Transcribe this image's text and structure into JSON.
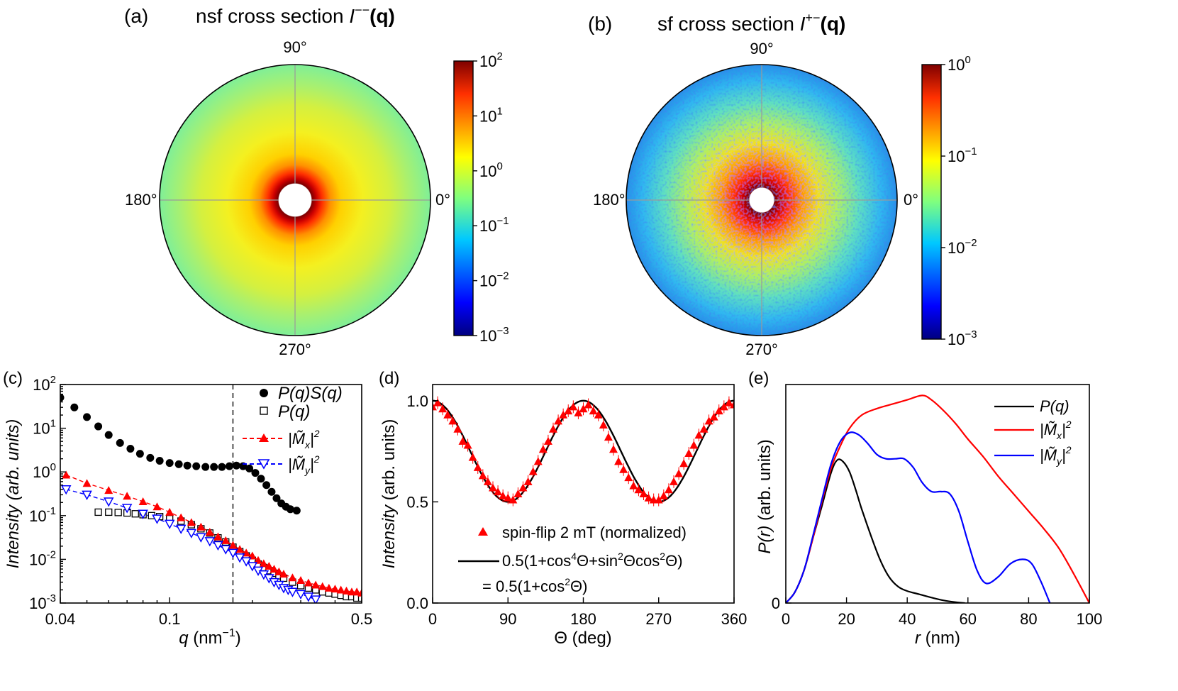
{
  "panel_a": {
    "label": "(a)",
    "title": "nsf cross section ",
    "title_sym": "I",
    "title_sup": "−−",
    "title_tail": "(q)",
    "angles": {
      "a90": "90°",
      "a180": "180°",
      "a0": "0°",
      "a270": "270°"
    },
    "colorbar_ticks": [
      {
        "base": "10",
        "exp": "2"
      },
      {
        "base": "10",
        "exp": "1"
      },
      {
        "base": "10",
        "exp": "0"
      },
      {
        "base": "10",
        "exp": "−1"
      },
      {
        "base": "10",
        "exp": "−2"
      },
      {
        "base": "10",
        "exp": "−3"
      }
    ]
  },
  "panel_b": {
    "label": "(b)",
    "title": "sf cross section ",
    "title_sym": "I",
    "title_sup": "+−",
    "title_tail": "(q)",
    "angles": {
      "a90": "90°",
      "a180": "180°",
      "a0": "0°",
      "a270": "270°"
    },
    "colorbar_ticks": [
      {
        "base": "10",
        "exp": "0"
      },
      {
        "base": "10",
        "exp": "−1"
      },
      {
        "base": "10",
        "exp": "−2"
      },
      {
        "base": "10",
        "exp": "−3"
      }
    ]
  },
  "chart_data": [
    {
      "type": "heatmap",
      "panel": "(a)",
      "title": "nsf cross section I−−(q)",
      "projection": "polar",
      "angle_labels": [
        "0°",
        "90°",
        "180°",
        "270°"
      ],
      "colorbar_range": [
        0.001,
        100
      ],
      "colorbar_scale": "log",
      "colormap": "jet",
      "radial_intensity_profile": {
        "r_fraction": [
          0.12,
          0.2,
          0.3,
          0.45,
          0.6,
          0.8,
          1.0
        ],
        "intensity": [
          100,
          20,
          3,
          1.5,
          1.0,
          0.5,
          0.3
        ]
      }
    },
    {
      "type": "heatmap",
      "panel": "(b)",
      "title": "sf cross section I+−(q)",
      "projection": "polar",
      "angle_labels": [
        "0°",
        "90°",
        "180°",
        "270°"
      ],
      "colorbar_range": [
        0.001,
        1
      ],
      "colorbar_scale": "log",
      "colormap": "jet",
      "radial_intensity_profile": {
        "r_fraction": [
          0.12,
          0.2,
          0.3,
          0.45,
          0.6,
          0.8,
          1.0
        ],
        "intensity": [
          1,
          0.4,
          0.15,
          0.06,
          0.035,
          0.02,
          0.012
        ]
      }
    },
    {
      "type": "scatter",
      "panel": "(c)",
      "xlabel": "q (nm⁻¹)",
      "ylabel": "Intensity (arb. units)",
      "xscale": "log",
      "yscale": "log",
      "xlim": [
        0.04,
        0.5
      ],
      "ylim": [
        0.001,
        100
      ],
      "x_ticks": [
        "0.04",
        "0.1",
        "0.5"
      ],
      "y_ticks": [
        {
          "base": "10",
          "exp": "2"
        },
        {
          "base": "10",
          "exp": "1"
        },
        {
          "base": "10",
          "exp": "0"
        },
        {
          "base": "10",
          "exp": "-1"
        },
        {
          "base": "10",
          "exp": "-2"
        },
        {
          "base": "10",
          "exp": "-3"
        }
      ],
      "vline_x": 0.17,
      "legend": [
        {
          "text": "P(q)S(q)",
          "marker": "filled-circle",
          "color": "#000000"
        },
        {
          "text": "P(q)",
          "marker": "open-square",
          "color": "#000000"
        },
        {
          "text": "|M̃x|²",
          "marker": "filled-triangle",
          "color": "#ff0000"
        },
        {
          "text": "|M̃y|²",
          "marker": "open-triangle-down",
          "color": "#0000ff"
        }
      ],
      "series": [
        {
          "name": "P(q)S(q)",
          "color": "#000000",
          "marker": "filled-circle",
          "x": [
            0.04,
            0.045,
            0.05,
            0.055,
            0.06,
            0.066,
            0.072,
            0.078,
            0.085,
            0.092,
            0.1,
            0.108,
            0.116,
            0.125,
            0.135,
            0.145,
            0.155,
            0.165,
            0.175,
            0.185,
            0.195,
            0.205,
            0.215,
            0.225,
            0.235,
            0.245,
            0.255,
            0.265,
            0.275,
            0.29
          ],
          "y": [
            50,
            30,
            18,
            11,
            7,
            4.6,
            3.4,
            2.6,
            2.1,
            1.8,
            1.6,
            1.5,
            1.4,
            1.35,
            1.3,
            1.3,
            1.3,
            1.35,
            1.4,
            1.35,
            1.2,
            0.95,
            0.7,
            0.5,
            0.35,
            0.25,
            0.19,
            0.16,
            0.14,
            0.13
          ]
        },
        {
          "name": "P(q)",
          "color": "#000000",
          "marker": "open-square",
          "x": [
            0.055,
            0.06,
            0.065,
            0.07,
            0.075,
            0.08,
            0.086,
            0.092,
            0.1,
            0.11,
            0.12,
            0.13,
            0.14,
            0.15,
            0.16,
            0.17,
            0.18,
            0.19,
            0.2,
            0.21,
            0.22,
            0.23,
            0.24,
            0.25,
            0.26,
            0.28,
            0.3,
            0.32,
            0.34,
            0.36,
            0.38,
            0.4,
            0.42,
            0.44,
            0.46,
            0.48,
            0.5
          ],
          "y": [
            0.12,
            0.12,
            0.118,
            0.115,
            0.11,
            0.105,
            0.1,
            0.095,
            0.085,
            0.075,
            0.062,
            0.05,
            0.04,
            0.031,
            0.025,
            0.019,
            0.015,
            0.012,
            0.0095,
            0.0078,
            0.0065,
            0.0055,
            0.0048,
            0.0042,
            0.0037,
            0.003,
            0.0025,
            0.0022,
            0.002,
            0.0018,
            0.0017,
            0.0016,
            0.0015,
            0.0014,
            0.0014,
            0.0013,
            0.0013
          ]
        },
        {
          "name": "|M̃x|²",
          "color": "#ff0000",
          "marker": "filled-triangle",
          "x": [
            0.042,
            0.05,
            0.06,
            0.07,
            0.08,
            0.09,
            0.1,
            0.11,
            0.12,
            0.13,
            0.14,
            0.15,
            0.16,
            0.17,
            0.18,
            0.19,
            0.2,
            0.21,
            0.22,
            0.23,
            0.24,
            0.25,
            0.26,
            0.28,
            0.3,
            0.32,
            0.34,
            0.36,
            0.38,
            0.4,
            0.42,
            0.44,
            0.46,
            0.48,
            0.5
          ],
          "y": [
            0.85,
            0.55,
            0.38,
            0.28,
            0.21,
            0.16,
            0.12,
            0.09,
            0.07,
            0.055,
            0.042,
            0.033,
            0.027,
            0.021,
            0.017,
            0.014,
            0.012,
            0.0095,
            0.008,
            0.007,
            0.006,
            0.0052,
            0.0046,
            0.0038,
            0.0033,
            0.0029,
            0.0026,
            0.0024,
            0.0022,
            0.0021,
            0.002,
            0.0019,
            0.0018,
            0.0018,
            0.0017
          ]
        },
        {
          "name": "|M̃y|²",
          "color": "#0000ff",
          "marker": "open-triangle-down",
          "x": [
            0.042,
            0.05,
            0.06,
            0.07,
            0.08,
            0.09,
            0.1,
            0.11,
            0.12,
            0.13,
            0.14,
            0.15,
            0.16,
            0.17,
            0.18,
            0.19,
            0.2,
            0.21,
            0.22,
            0.23,
            0.24,
            0.25,
            0.26,
            0.27,
            0.28,
            0.3,
            0.32,
            0.34
          ],
          "y": [
            0.4,
            0.3,
            0.21,
            0.15,
            0.11,
            0.085,
            0.065,
            0.05,
            0.04,
            0.032,
            0.026,
            0.021,
            0.017,
            0.014,
            0.011,
            0.009,
            0.007,
            0.0055,
            0.0045,
            0.0037,
            0.003,
            0.0026,
            0.0022,
            0.002,
            0.0018,
            0.0016,
            0.0014,
            0.0012
          ]
        }
      ]
    },
    {
      "type": "scatter",
      "panel": "(d)",
      "xlabel": "Θ (deg)",
      "ylabel": "Intensity (arb. units)",
      "xlim": [
        0,
        360
      ],
      "ylim": [
        0,
        1.08
      ],
      "x_ticks": [
        "0",
        "90",
        "180",
        "270",
        "360"
      ],
      "y_ticks": [
        "0.0",
        "0.5",
        "1.0"
      ],
      "legend": [
        {
          "text": "spin-flip 2 mT (normalized)",
          "marker": "filled-triangle",
          "color": "#ff0000"
        },
        {
          "text": "0.5(1+cos⁴Θ+sin²Θcos²Θ)",
          "marker": "line",
          "color": "#000000"
        },
        {
          "text": "= 0.5(1+cos²Θ)",
          "marker": "none",
          "color": "#000000"
        }
      ],
      "series": [
        {
          "name": "spin-flip 2 mT (normalized)",
          "color": "#ff0000",
          "marker": "filled-triangle",
          "x": [
            0,
            6,
            12,
            18,
            24,
            30,
            36,
            42,
            48,
            54,
            60,
            66,
            72,
            78,
            84,
            90,
            96,
            102,
            108,
            114,
            120,
            126,
            132,
            138,
            144,
            150,
            156,
            162,
            168,
            174,
            180,
            186,
            192,
            198,
            204,
            210,
            216,
            222,
            228,
            234,
            240,
            246,
            252,
            258,
            264,
            270,
            276,
            282,
            288,
            294,
            300,
            306,
            312,
            318,
            324,
            330,
            336,
            342,
            348,
            354,
            360
          ],
          "y": [
            0.97,
            0.99,
            0.96,
            0.93,
            0.9,
            0.86,
            0.8,
            0.78,
            0.72,
            0.67,
            0.63,
            0.6,
            0.57,
            0.55,
            0.53,
            0.52,
            0.51,
            0.54,
            0.57,
            0.6,
            0.65,
            0.7,
            0.76,
            0.8,
            0.86,
            0.9,
            0.93,
            0.95,
            0.97,
            0.94,
            0.96,
            0.98,
            0.95,
            0.93,
            0.88,
            0.82,
            0.76,
            0.7,
            0.66,
            0.62,
            0.58,
            0.56,
            0.54,
            0.52,
            0.51,
            0.51,
            0.53,
            0.56,
            0.6,
            0.64,
            0.69,
            0.74,
            0.78,
            0.83,
            0.86,
            0.9,
            0.92,
            0.95,
            0.97,
            0.99,
            0.98
          ]
        },
        {
          "name": "0.5(1+cos²Θ)",
          "color": "#000000",
          "marker": "line",
          "formula": "0.5*(1+cos^2(theta))",
          "x_range": [
            0,
            360
          ]
        }
      ]
    },
    {
      "type": "line",
      "panel": "(e)",
      "xlabel": "r (nm)",
      "ylabel": "P(r) (arb. units)",
      "xlim": [
        0,
        100
      ],
      "ylim": [
        0,
        1.0
      ],
      "x_ticks": [
        "0",
        "20",
        "40",
        "60",
        "80",
        "100"
      ],
      "y_ticks": [
        "0"
      ],
      "legend": [
        {
          "text": "P(q)",
          "color": "#000000"
        },
        {
          "text": "|M̃x|²",
          "color": "#ff0000"
        },
        {
          "text": "|M̃y|²",
          "color": "#0000ff"
        }
      ],
      "series": [
        {
          "name": "P(q)",
          "color": "#000000",
          "x": [
            0,
            3,
            6,
            9,
            12,
            15,
            17,
            19,
            21,
            23,
            25,
            28,
            31,
            34,
            37,
            40,
            44,
            48,
            52,
            56,
            59
          ],
          "y": [
            0,
            0.05,
            0.15,
            0.3,
            0.45,
            0.6,
            0.655,
            0.645,
            0.6,
            0.52,
            0.43,
            0.31,
            0.2,
            0.12,
            0.075,
            0.055,
            0.04,
            0.025,
            0.012,
            0.004,
            0
          ]
        },
        {
          "name": "|M̃x|²",
          "color": "#ff0000",
          "x": [
            0,
            3,
            6,
            9,
            12,
            15,
            18,
            21,
            25,
            30,
            35,
            40,
            45,
            48,
            52,
            56,
            60,
            65,
            70,
            75,
            80,
            85,
            90,
            95,
            100
          ],
          "y": [
            0,
            0.05,
            0.15,
            0.3,
            0.47,
            0.62,
            0.72,
            0.8,
            0.86,
            0.89,
            0.91,
            0.93,
            0.95,
            0.93,
            0.88,
            0.82,
            0.75,
            0.67,
            0.58,
            0.5,
            0.42,
            0.34,
            0.25,
            0.13,
            0
          ]
        },
        {
          "name": "|M̃y|²",
          "color": "#0000ff",
          "x": [
            0,
            3,
            6,
            9,
            12,
            15,
            18,
            21,
            24,
            27,
            30,
            33,
            36,
            39,
            42,
            45,
            48,
            51,
            54,
            57,
            60,
            63,
            66,
            70,
            74,
            78,
            81,
            84,
            87
          ],
          "y": [
            0,
            0.05,
            0.15,
            0.31,
            0.48,
            0.64,
            0.74,
            0.78,
            0.77,
            0.73,
            0.68,
            0.66,
            0.66,
            0.66,
            0.62,
            0.55,
            0.51,
            0.51,
            0.5,
            0.42,
            0.28,
            0.15,
            0.09,
            0.12,
            0.18,
            0.2,
            0.18,
            0.1,
            0
          ]
        }
      ]
    }
  ],
  "panel_c": {
    "label": "(c)",
    "ylabel": "Intensity (arb. units)",
    "xlabel_q": "q",
    "xlabel_unit": " (nm",
    "xlabel_exp": "−1",
    "xlabel_close": ")",
    "legend_1": "P(q)S(q)",
    "legend_2": "P(q)",
    "legend_3_base": "|M̃",
    "legend_3_sub": "x",
    "legend_3_tail": "|",
    "legend_3_sup": "2",
    "legend_4_base": "|M̃",
    "legend_4_sub": "y",
    "legend_4_tail": "|",
    "legend_4_sup": "2"
  },
  "panel_d": {
    "label": "(d)",
    "ylabel_italic": "Intensity",
    "ylabel_tail": " (arb. units)",
    "xlabel": "Θ (deg)",
    "legend_1": "spin-flip 2 mT (normalized)",
    "legend_2_a": "0.5(1+cos",
    "legend_2_b": "4",
    "legend_2_c": "Θ+sin",
    "legend_2_d": "2",
    "legend_2_e": "Θcos",
    "legend_2_f": "2",
    "legend_2_g": "Θ)",
    "legend_3_a": "= 0.5(1+cos",
    "legend_3_b": "2",
    "legend_3_c": "Θ)"
  },
  "panel_e": {
    "label": "(e)",
    "ylabel_italic": "P(r)",
    "ylabel_tail": " (arb. units)",
    "xlabel_italic": "r",
    "xlabel_tail": " (nm)",
    "legend_1": "P(q)",
    "legend_2_base": "|M̃",
    "legend_2_sub": "x",
    "legend_2_tail": "|",
    "legend_2_sup": "2",
    "legend_3_base": "|M̃",
    "legend_3_sub": "y",
    "legend_3_tail": "|",
    "legend_3_sup": "2"
  }
}
